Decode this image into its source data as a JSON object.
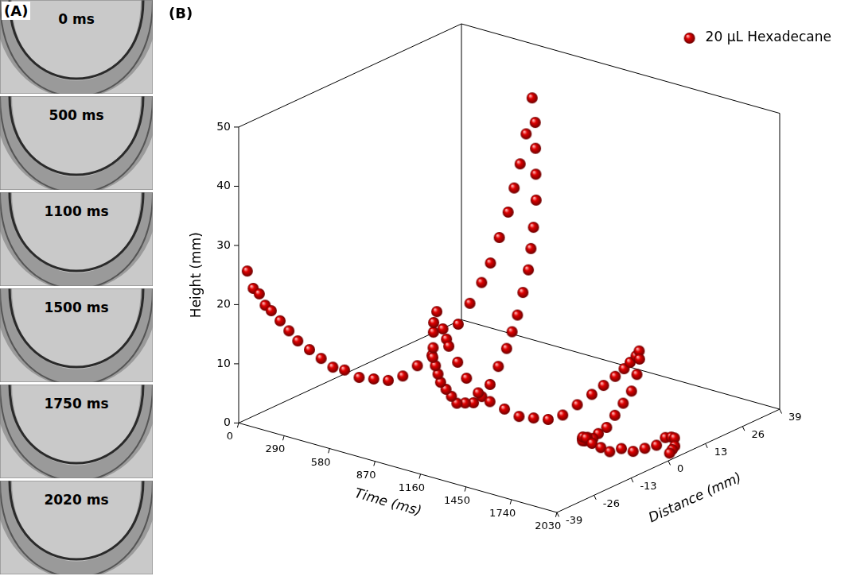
{
  "panels": {
    "letter": "(A)",
    "frames": [
      "0 ms",
      "500 ms",
      "1100 ms",
      "1500 ms",
      "1750 ms",
      "2020 ms"
    ]
  },
  "chart_data": {
    "type": "scatter3d",
    "letter": "(B)",
    "x_label": "Time (ms)",
    "y_label": "Distance (mm)",
    "z_label": "Height (mm)",
    "xlim": [
      0,
      2030
    ],
    "xticks": [
      0,
      290,
      580,
      870,
      1160,
      1450,
      1740,
      2030
    ],
    "ylim": [
      -39,
      39
    ],
    "yticks": [
      -39,
      -26,
      -13,
      0,
      13,
      26,
      39
    ],
    "zlim": [
      0,
      50
    ],
    "zticks": [
      0,
      10,
      20,
      30,
      40,
      50
    ],
    "legend": "upper right",
    "series": [
      {
        "name": "20 μL Hexadecane",
        "color": "#e00000",
        "marker": "sphere",
        "x": [
          0,
          20,
          40,
          60,
          80,
          100,
          120,
          140,
          160,
          180,
          200,
          220,
          240,
          260,
          280,
          300,
          320,
          340,
          360,
          380,
          400,
          420,
          440,
          460,
          480,
          500,
          520,
          540,
          560,
          580,
          600,
          620,
          640,
          660,
          680,
          700,
          720,
          740,
          760,
          780,
          800,
          820,
          840,
          860,
          880,
          900,
          920,
          940,
          960,
          980,
          1000,
          1020,
          1040,
          1060,
          1080,
          1100,
          1120,
          1140,
          1160,
          1180,
          1200,
          1220,
          1240,
          1260,
          1280,
          1300,
          1320,
          1340,
          1360,
          1380,
          1400,
          1420,
          1440,
          1460,
          1480,
          1500,
          1520,
          1540,
          1560,
          1580,
          1600,
          1620,
          1640,
          1660,
          1680,
          1700,
          1720,
          1740,
          1760,
          1780,
          1800,
          1820,
          1840,
          1860,
          1880,
          1900,
          1920,
          1940,
          1960,
          1980,
          2000,
          2020
        ],
        "y": [
          -36,
          -35,
          -34,
          -33,
          -32,
          -30,
          -28,
          -26,
          -23,
          -20,
          -17,
          -14,
          -10,
          -6,
          -2,
          2,
          6,
          10,
          14,
          17,
          20,
          23,
          25,
          27,
          29,
          30,
          31,
          32,
          33,
          33,
          32,
          31,
          30,
          28,
          26,
          24,
          21,
          18,
          15,
          12,
          8,
          4,
          0,
          -4,
          -8,
          -12,
          -15,
          -18,
          -21,
          -23,
          -25,
          -27,
          -28,
          -29,
          -30,
          -30,
          -29,
          -28,
          -26,
          -24,
          -21,
          -18,
          -14,
          -10,
          -6,
          -2,
          2,
          6,
          10,
          13,
          16,
          18,
          19,
          20,
          20,
          19,
          17,
          14,
          10,
          6,
          2,
          -2,
          -5,
          -8,
          -10,
          -12,
          -13,
          -14,
          -14,
          -13,
          -11,
          -9,
          -6,
          -3,
          0,
          3,
          5,
          6,
          6,
          5,
          3,
          1
        ],
        "z": [
          25,
          22,
          21,
          19,
          18,
          16,
          14,
          12,
          10,
          8,
          6,
          5,
          3,
          2,
          1,
          1,
          2,
          3,
          5,
          7,
          10,
          13,
          16,
          20,
          24,
          28,
          32,
          37,
          43,
          39,
          35,
          31,
          27,
          23,
          20,
          17,
          14,
          11,
          9,
          7,
          5,
          3,
          2,
          2,
          3,
          4,
          6,
          8,
          10,
          12,
          14,
          16,
          18,
          21,
          23,
          25,
          22,
          19,
          16,
          13,
          10,
          8,
          6,
          4,
          3,
          2,
          2,
          3,
          4,
          5,
          6,
          7,
          8,
          9,
          10,
          9,
          7,
          5,
          4,
          3,
          2,
          2,
          2,
          3,
          3,
          4,
          4,
          5,
          5,
          4,
          3,
          2,
          2,
          1,
          1,
          1,
          2,
          2,
          2,
          1,
          1,
          1
        ]
      }
    ]
  }
}
